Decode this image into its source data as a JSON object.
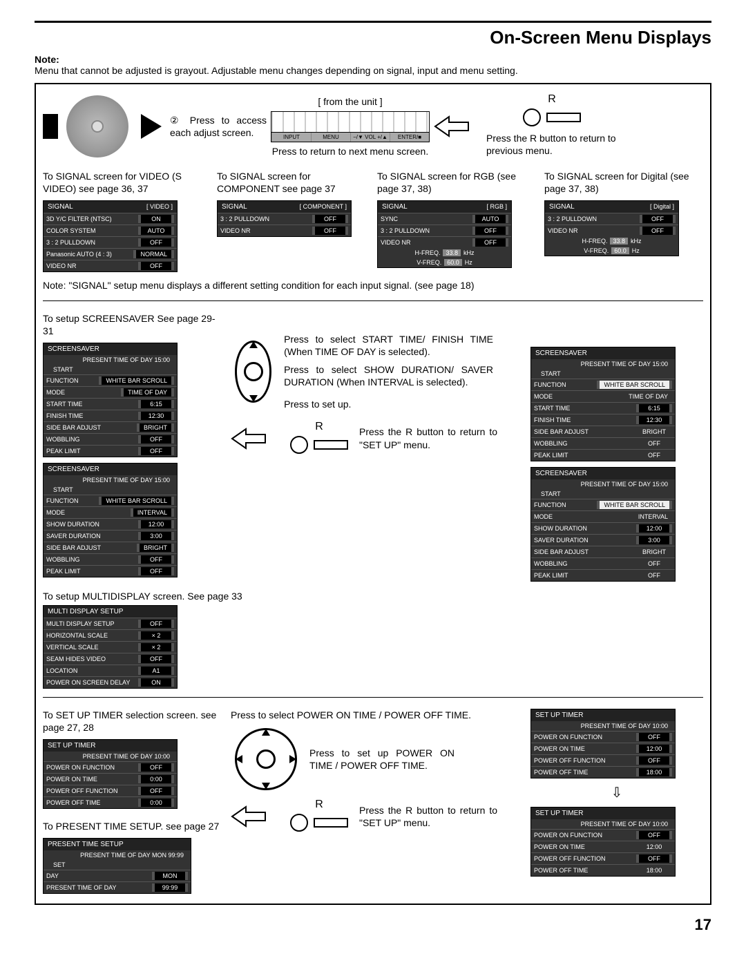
{
  "page": {
    "title": "On-Screen Menu Displays",
    "number": "17"
  },
  "note": {
    "label": "Note:",
    "text": "Menu that cannot be adjusted is grayout. Adjustable menu changes depending on signal, input and menu setting."
  },
  "top": {
    "step2": "② Press to access each adjust screen.",
    "fromunit": "[ from the unit ]",
    "unitbtns": [
      "INPUT",
      "MENU",
      "−/▼ VOL +/▲",
      "ENTER/■"
    ],
    "return_next": "Press to return to next menu screen.",
    "r_label": "R",
    "r_text": "Press the R button to return to previous menu."
  },
  "signal": {
    "cap_video": "To SIGNAL screen for VIDEO (S VIDEO) see page 36, 37",
    "cap_comp": "To SIGNAL screen for COMPONENT see page 37",
    "cap_rgb": "To SIGNAL screen for RGB (see page 37, 38)",
    "cap_digital": "To SIGNAL screen for Digital (see page 37, 38)",
    "note": "Note: \"SIGNAL\" setup menu displays a different setting condition for each input signal. (see page 18)",
    "menus": {
      "video": {
        "hdr": "SIGNAL",
        "tag": "[ VIDEO ]",
        "rows": [
          [
            "3D Y/C FILTER (NTSC)",
            "ON"
          ],
          [
            "COLOR SYSTEM",
            "AUTO"
          ],
          [
            "3 : 2 PULLDOWN",
            "OFF"
          ],
          [
            "Panasonic AUTO (4 : 3)",
            "NORMAL"
          ],
          [
            "VIDEO NR",
            "OFF"
          ]
        ]
      },
      "comp": {
        "hdr": "SIGNAL",
        "tag": "[ COMPONENT ]",
        "rows": [
          [
            "3 : 2 PULLDOWN",
            "OFF"
          ],
          [
            "VIDEO NR",
            "OFF"
          ]
        ]
      },
      "rgb": {
        "hdr": "SIGNAL",
        "tag": "[ RGB ]",
        "rows": [
          [
            "SYNC",
            "AUTO"
          ],
          [
            "3 : 2 PULLDOWN",
            "OFF"
          ],
          [
            "VIDEO NR",
            "OFF"
          ]
        ],
        "freq": [
          [
            "H-FREQ.",
            "33.8",
            "kHz"
          ],
          [
            "V-FREQ.",
            "60.0",
            "Hz"
          ]
        ]
      },
      "digital": {
        "hdr": "SIGNAL",
        "tag": "[ Digital ]",
        "rows": [
          [
            "3 : 2 PULLDOWN",
            "OFF"
          ],
          [
            "VIDEO NR",
            "OFF"
          ]
        ],
        "freq": [
          [
            "H-FREQ.",
            "33.8",
            "kHz"
          ],
          [
            "V-FREQ.",
            "60.0",
            "Hz"
          ]
        ]
      }
    }
  },
  "ss": {
    "cap": "To setup SCREENSAVER See page 29-31",
    "instr1": "Press to select START TIME/ FINISH TIME (When TIME OF DAY is selected).",
    "instr2": "Press to select SHOW DURATION/ SAVER DURATION (When INTERVAL is selected).",
    "instr3": "Press to set up.",
    "r_text": "Press the R button to return to \"SET UP\" menu.",
    "r_label": "R",
    "m1": {
      "hdr": "SCREENSAVER",
      "time": "PRESENT  TIME OF DAY    15:00",
      "start": "START",
      "rows": [
        [
          "FUNCTION",
          "WHITE BAR SCROLL"
        ],
        [
          "MODE",
          "TIME OF DAY"
        ],
        [
          "START TIME",
          "6:15"
        ],
        [
          "FINISH TIME",
          "12:30"
        ],
        [
          "SIDE BAR ADJUST",
          "BRIGHT"
        ],
        [
          "WOBBLING",
          "OFF"
        ],
        [
          "PEAK LIMIT",
          "OFF"
        ]
      ]
    },
    "m2": {
      "hdr": "SCREENSAVER",
      "time": "PRESENT  TIME OF DAY    15:00",
      "start": "START",
      "rows": [
        [
          "FUNCTION",
          "WHITE BAR SCROLL"
        ],
        [
          "MODE",
          "INTERVAL"
        ],
        [
          "SHOW DURATION",
          "12:00"
        ],
        [
          "SAVER DURATION",
          "3:00"
        ],
        [
          "SIDE BAR ADJUST",
          "BRIGHT"
        ],
        [
          "WOBBLING",
          "OFF"
        ],
        [
          "PEAK LIMIT",
          "OFF"
        ]
      ]
    },
    "m3": {
      "hdr": "SCREENSAVER",
      "time": "PRESENT  TIME OF DAY    15:00",
      "start": "START",
      "rows": [
        [
          "FUNCTION",
          "WHITE BAR SCROLL",
          true
        ],
        [
          "MODE",
          "TIME OF DAY",
          false
        ],
        [
          "START TIME",
          "6:15"
        ],
        [
          "FINISH TIME",
          "12:30"
        ],
        [
          "SIDE BAR ADJUST",
          "BRIGHT",
          false
        ],
        [
          "WOBBLING",
          "OFF",
          false
        ],
        [
          "PEAK LIMIT",
          "OFF",
          false
        ]
      ]
    },
    "m4": {
      "hdr": "SCREENSAVER",
      "time": "PRESENT  TIME OF DAY    15:00",
      "start": "START",
      "rows": [
        [
          "FUNCTION",
          "WHITE BAR SCROLL",
          true
        ],
        [
          "MODE",
          "INTERVAL",
          false
        ],
        [
          "SHOW DURATION",
          "12:00"
        ],
        [
          "SAVER DURATION",
          "3:00"
        ],
        [
          "SIDE BAR ADJUST",
          "BRIGHT",
          false
        ],
        [
          "WOBBLING",
          "OFF",
          false
        ],
        [
          "PEAK LIMIT",
          "OFF",
          false
        ]
      ]
    }
  },
  "multi": {
    "cap": "To setup MULTIDISPLAY screen. See page 33",
    "m": {
      "hdr": "MULTI DISPLAY SETUP",
      "rows": [
        [
          "MULTI DISPLAY SETUP",
          "OFF"
        ],
        [
          "HORIZONTAL SCALE",
          "× 2"
        ],
        [
          "VERTICAL SCALE",
          "× 2"
        ],
        [
          "SEAM HIDES VIDEO",
          "OFF"
        ],
        [
          "LOCATION",
          "A1"
        ],
        [
          "POWER ON SCREEN DELAY",
          "ON"
        ]
      ]
    }
  },
  "timer": {
    "cap": "To SET UP TIMER selection screen. see page 27, 28",
    "instr1": "Press to select POWER ON TIME / POWER OFF TIME.",
    "instr2": "Press to set up POWER ON TIME / POWER OFF TIME.",
    "r_text": "Press the R button to return to \"SET UP\" menu.",
    "r_label": "R",
    "m1": {
      "hdr": "SET UP TIMER",
      "time": "PRESENT  TIME OF DAY   10:00",
      "rows": [
        [
          "POWER ON FUNCTION",
          "OFF"
        ],
        [
          "POWER ON TIME",
          "0:00"
        ],
        [
          "POWER OFF FUNCTION",
          "OFF"
        ],
        [
          "POWER OFF TIME",
          "0:00"
        ]
      ]
    },
    "m2": {
      "hdr": "SET UP TIMER",
      "time": "PRESENT  TIME OF DAY   10:00",
      "rows": [
        [
          "POWER ON FUNCTION",
          "OFF"
        ],
        [
          "POWER ON TIME",
          "12:00"
        ],
        [
          "POWER OFF FUNCTION",
          "OFF"
        ],
        [
          "POWER OFF TIME",
          "18:00"
        ]
      ]
    },
    "m3": {
      "hdr": "SET UP TIMER",
      "time": "PRESENT  TIME OF DAY   10:00",
      "rows": [
        [
          "POWER ON FUNCTION",
          "OFF"
        ],
        [
          "POWER ON TIME",
          "12:00",
          false
        ],
        [
          "POWER OFF FUNCTION",
          "OFF"
        ],
        [
          "POWER OFF TIME",
          "18:00",
          false
        ]
      ]
    }
  },
  "present": {
    "cap": "To PRESENT TIME SETUP. see page 27",
    "m": {
      "hdr": "PRESENT  TIME SETUP",
      "time": "PRESENT  TIME OF DAY   MON  99:99",
      "set": "SET",
      "rows": [
        [
          "DAY",
          "MON"
        ],
        [
          "PRESENT  TIME OF DAY",
          "99:99"
        ]
      ]
    }
  }
}
